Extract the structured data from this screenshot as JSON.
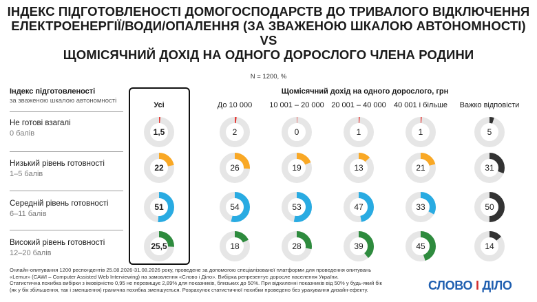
{
  "title_lines": [
    "ІНДЕКС ПІДГОТОВЛЕНОСТІ ДОМОГОСПОДАРСТВ ДО ТРИВАЛОГО ВІДКЛЮЧЕННЯ",
    "ЕЛЕКТРОЕНЕРГІЇ/ВОДИ/ОПАЛЕННЯ (ЗА ЗВАЖЕНОЮ ШКАЛОЮ АВТОНОМНОСТІ)",
    "VS",
    "ЩОМІСЯЧНИЙ ДОХІД НА ОДНОГО ДОРОСЛОГО ЧЛЕНА РОДИНИ"
  ],
  "subtitle": "N = 1200, %",
  "row_header": {
    "title": "Індекс підготовленості",
    "subtitle": "за зваженою шкалою автономності"
  },
  "column_group_title": "Щомісячний дохід на одного дорослого, грн",
  "colors": {
    "track": "#e6e6e6",
    "rows": [
      "#e53935",
      "#f9a825",
      "#29abe2",
      "#2e8b3e"
    ],
    "hard_to_answer": "#333333"
  },
  "chart_data": {
    "type": "donut-grid",
    "categories": [
      "Усі",
      "До 10 000",
      "10 001 – 20 000",
      "20 001 – 40 000",
      "40 001 і більше",
      "Важко відповісти"
    ],
    "rows": [
      {
        "label": "Не готові взагалі",
        "range": "0 балів",
        "values": [
          1.5,
          2,
          0,
          1,
          1,
          5
        ],
        "display": [
          "1,5",
          "2",
          "0",
          "1",
          "1",
          "5"
        ]
      },
      {
        "label": "Низький рівень готовності",
        "range": "1–5 балів",
        "values": [
          22,
          26,
          19,
          13,
          21,
          31
        ],
        "display": [
          "22",
          "26",
          "19",
          "13",
          "21",
          "31"
        ]
      },
      {
        "label": "Середній рівень готовності",
        "range": "6–11 балів",
        "values": [
          51,
          54,
          53,
          47,
          33,
          50
        ],
        "display": [
          "51",
          "54",
          "53",
          "47",
          "33",
          "50"
        ]
      },
      {
        "label": "Високий рівень готовності",
        "range": "12–20 балів",
        "values": [
          25.5,
          18,
          28,
          39,
          45,
          14
        ],
        "display": [
          "25,5",
          "18",
          "28",
          "39",
          "45",
          "14"
        ]
      }
    ]
  },
  "footnote_lines": [
    "Онлайн-опитування 1200 респондентів 25.08.2026-31.08.2026 року, проведене за допомогою спеціалізованої платформи для проведення опитувань",
    "«Lemur» (CAWI – Computer Assisted Web Interviewing) на замовлення «Слово і Діло». Вибірка репрезентує доросле населення України.",
    "Статистична похибка вибірки з імовірністю 0,95 не перевищує 2,89% для показників, близьких до 50%. При відхиленні показників від 50% у будь-який бік",
    "(як у бік збільшення, так і зменшення) гранична похибка зменшується. Розрахунок статистичної похибки проведено без урахування дизайн-ефекту."
  ],
  "logo": {
    "left": "СЛОВО",
    "sep": "І",
    "right": "ДІЛО"
  }
}
